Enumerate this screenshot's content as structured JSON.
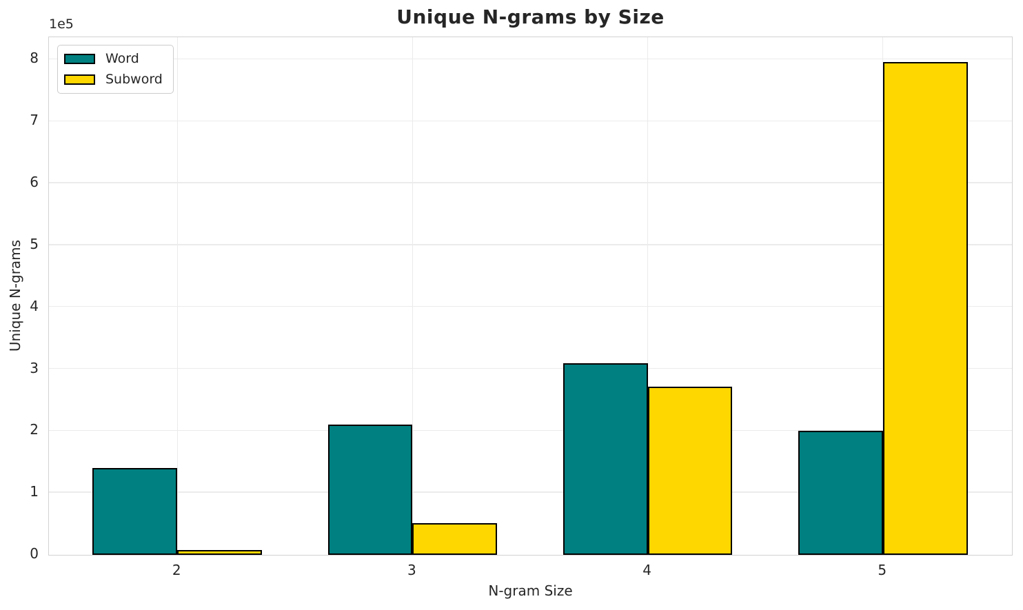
{
  "title": "Unique N-grams by Size",
  "axes": {
    "xlabel": "N-gram Size",
    "ylabel": "Unique N-grams",
    "offset_label": "1e5",
    "y_tick_labels": [
      "0",
      "1",
      "2",
      "3",
      "4",
      "5",
      "6",
      "7",
      "8"
    ],
    "y_tick_multiplier": 100000
  },
  "legend": {
    "items": [
      {
        "label": "Word",
        "color": "#008080"
      },
      {
        "label": "Subword",
        "color": "#FFD700"
      }
    ]
  },
  "colors": {
    "word": "#008080",
    "subword": "#FFD700",
    "bar_edge": "#000000",
    "grid": "#ebebeb",
    "spine": "#d2d2d2",
    "text": "#262626"
  },
  "chart_data": {
    "type": "bar",
    "categories": [
      "2",
      "3",
      "4",
      "5"
    ],
    "series": [
      {
        "name": "Word",
        "color": "#008080",
        "values": [
          140000,
          210000,
          310000,
          200000
        ]
      },
      {
        "name": "Subword",
        "color": "#FFD700",
        "values": [
          8000,
          51000,
          272000,
          796000
        ]
      }
    ],
    "title": "Unique N-grams by Size",
    "xlabel": "N-gram Size",
    "ylabel": "Unique N-grams",
    "ylim": [
      0,
      835000
    ],
    "y_ticks": [
      0,
      100000,
      200000,
      300000,
      400000,
      500000,
      600000,
      700000,
      800000
    ],
    "grid": true,
    "legend_position": "upper left",
    "bar_group_width": 0.72,
    "bar_edge_color": "#000000"
  }
}
